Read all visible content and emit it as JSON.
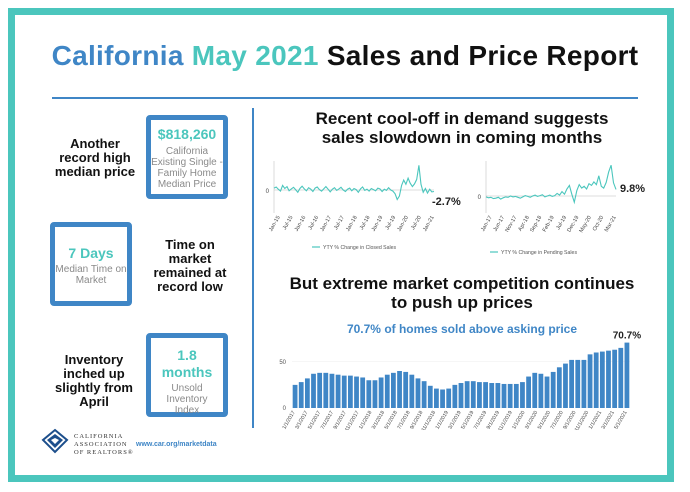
{
  "title": {
    "part1": "California",
    "part2": "May 2021",
    "part3": "Sales and Price Report"
  },
  "left": {
    "median_label": "Another record high median price",
    "median_value": "$818,260",
    "median_desc": "California Existing Single -Family Home Median Price",
    "days_value": "7 Days",
    "days_desc": "Median Time on Market",
    "days_label": "Time on market remained at record low",
    "inventory_label": "Inventory inched up slightly from April",
    "inv_value": "1.8 months",
    "inv_desc": "Unsold Inventory Index"
  },
  "section1": {
    "heading_line1": "Recent cool-off in demand suggests",
    "heading_line2": "sales slowdown in coming months"
  },
  "section2": {
    "heading_line1": "But extreme market competition continues",
    "heading_line2": "to push up prices",
    "subheading": "70.7% of homes sold above asking price",
    "last_value_label": "70.7%"
  },
  "footer": {
    "org_line1": "CALIFORNIA",
    "org_line2": "ASSOCIATION",
    "org_line3": "OF REALTORS®",
    "url": "www.car.org/marketdata"
  },
  "colors": {
    "blue": "#3f86c6",
    "teal": "#4bc6bd",
    "bar": "#3f86c6"
  },
  "chart_data": [
    {
      "type": "line",
      "series": [
        {
          "name": "YTY % Change in Closed Sales",
          "values": [
            0.5,
            0.8,
            0.2,
            -0.3,
            1.2,
            0.4,
            0.9,
            -0.2,
            0.3,
            0.7,
            0.1,
            -0.6,
            0.4,
            1.0,
            0.3,
            -0.2,
            0.6,
            0.2,
            -0.4,
            0.5,
            0.8,
            0.1,
            -0.3,
            0.3,
            0.9,
            0.2,
            -0.5,
            0.2,
            0.6,
            -0.1,
            0.3,
            0.7,
            0.0,
            -0.4,
            0.2,
            0.5,
            -0.2,
            0.4,
            0.1,
            -0.6,
            0.3,
            0.8,
            -0.1,
            0.2,
            -0.3,
            0.4,
            0.1,
            -0.2,
            0.5,
            0.3,
            -0.4,
            0.2,
            -0.1,
            0.6,
            0.0,
            -0.3,
            -1.0,
            -2.5,
            -1.6,
            1.2,
            2.6,
            1.5,
            3.1,
            1.8,
            0.9,
            1.6,
            2.8,
            6.5,
            1.5,
            -0.6,
            0.4,
            -0.8,
            0.2,
            -0.5,
            -0.4
          ]
        }
      ],
      "x_tick_labels": [
        "Jan-15",
        "Jul-15",
        "Jan-16",
        "Jul-16",
        "Jan-17",
        "Jul-17",
        "Jan-18",
        "Jul-18",
        "Jan-19",
        "Jul-19",
        "Jan-20",
        "Jul-20",
        "Jan-21"
      ],
      "y_tick_labels": [
        "0"
      ],
      "last_value_label": "-2.7%"
    },
    {
      "type": "line",
      "series": [
        {
          "name": "YTY % Change in Pending Sales",
          "values": [
            -0.2,
            -0.4,
            -0.3,
            -0.6,
            -0.5,
            -0.3,
            -0.7,
            -0.4,
            -0.2,
            -0.3,
            0.0,
            -0.2,
            -0.1,
            -0.3,
            -0.5,
            -0.2,
            0.1,
            -0.1,
            -0.3,
            0.0,
            0.2,
            -0.1,
            0.1,
            0.3,
            -0.2,
            0.0,
            0.2,
            -0.1,
            0.1,
            0.6,
            0.2,
            1.0,
            0.4,
            1.6,
            2.4,
            0.4,
            -1.4,
            1.2,
            2.6,
            1.8,
            2.2,
            1.6,
            2.8,
            2.4,
            3.2,
            2.6,
            4.6,
            2.2,
            1.8,
            3.1,
            5.4,
            7.0,
            3.0,
            1.5
          ]
        }
      ],
      "x_tick_labels": [
        "Jan-17",
        "Jun-17",
        "Nov-17",
        "Apr-18",
        "Sep-18",
        "Feb-19",
        "Jul-19",
        "Dec-19",
        "May-20",
        "Oct-20",
        "Mar-21"
      ],
      "y_tick_labels": [
        "0"
      ],
      "last_value_label": "9.8%"
    },
    {
      "type": "bar",
      "ylabel": "",
      "ylim": [
        0,
        80
      ],
      "y_tick_labels": [
        "0",
        "50"
      ],
      "x_tick_labels": [
        "1/1/2017",
        "3/1/2017",
        "5/1/2017",
        "7/1/2017",
        "9/1/2017",
        "11/1/2017",
        "1/1/2018",
        "3/1/2018",
        "5/1/2018",
        "7/1/2018",
        "9/1/2018",
        "11/1/2018",
        "1/1/2019",
        "3/1/2019",
        "5/1/2019",
        "7/1/2019",
        "9/1/2019",
        "11/1/2019",
        "1/1/2020",
        "3/1/2020",
        "5/1/2020",
        "7/1/2020",
        "9/1/2020",
        "11/1/2020",
        "1/1/2021",
        "3/1/2021",
        "5/1/2021"
      ],
      "values": [
        25,
        28,
        32,
        37,
        38,
        38,
        37,
        36,
        35,
        35,
        34,
        33,
        30,
        30,
        33,
        36,
        38,
        40,
        39,
        36,
        32,
        29,
        24,
        21,
        20,
        21,
        25,
        27,
        29,
        29,
        28,
        28,
        27,
        27,
        26,
        26,
        26,
        28,
        34,
        38,
        37,
        34,
        39,
        44,
        48,
        52,
        52,
        52,
        58,
        60,
        61,
        62,
        63,
        65,
        70.7
      ]
    }
  ]
}
